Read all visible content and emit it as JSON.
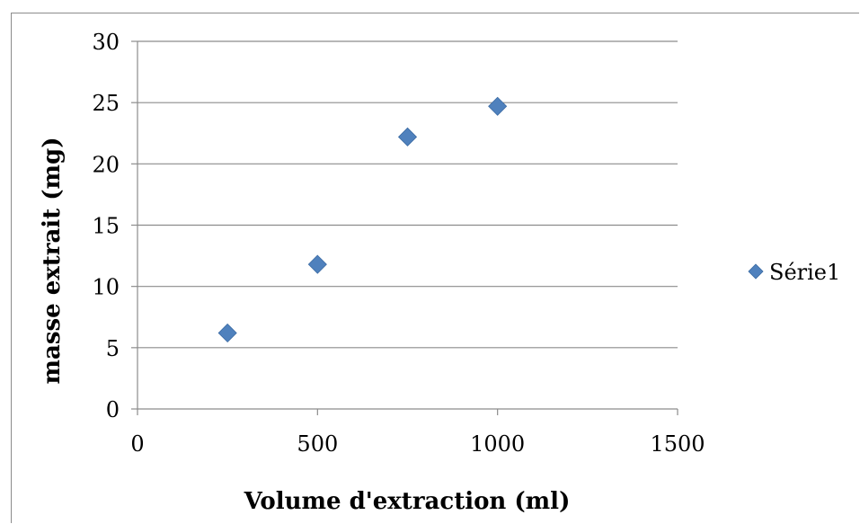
{
  "chart_data": {
    "type": "scatter",
    "xlabel": "Volume d'extraction (ml)",
    "ylabel": "masse extrait (mg)",
    "xlim": [
      0,
      1500
    ],
    "ylim": [
      0,
      30
    ],
    "xticks": [
      0,
      500,
      1000,
      1500
    ],
    "yticks": [
      0,
      5,
      10,
      15,
      20,
      25,
      30
    ],
    "grid": "horizontal",
    "legend_position": "right",
    "series": [
      {
        "name": "Série1",
        "color": "#4f81bd",
        "marker": "diamond",
        "x": [
          250,
          500,
          750,
          1000
        ],
        "y": [
          6.2,
          11.8,
          22.2,
          24.7
        ]
      }
    ]
  }
}
